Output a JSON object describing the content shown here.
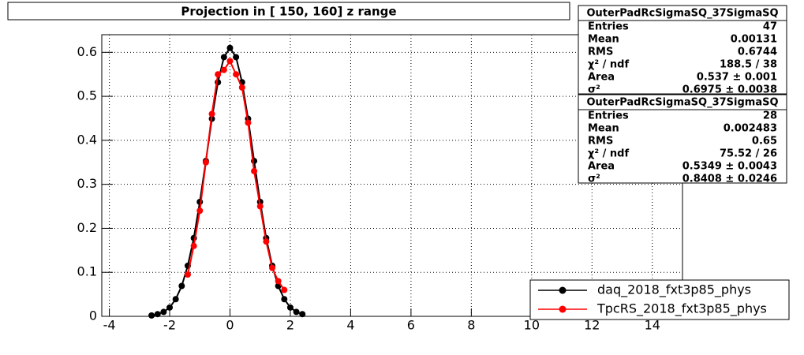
{
  "chart_data": {
    "type": "scatter",
    "title": "Projection in [ 150, 160] z range",
    "xlim": [
      -4.25,
      15
    ],
    "ylim": [
      0,
      0.64
    ],
    "xticks": [
      -4,
      -2,
      0,
      2,
      4,
      6,
      8,
      10,
      12,
      14
    ],
    "yticks": [
      0,
      0.1,
      0.2,
      0.3,
      0.4,
      0.5,
      0.6
    ],
    "grid": true,
    "legend": "bottom-right",
    "series": [
      {
        "name": "daq_2018_fxt3p85_phys",
        "color": "#000000",
        "x": [
          -2.6,
          -2.4,
          -2.2,
          -2.0,
          -1.8,
          -1.6,
          -1.4,
          -1.2,
          -1.0,
          -0.8,
          -0.6,
          -0.4,
          -0.2,
          0,
          0.2,
          0.4,
          0.6,
          0.8,
          1.0,
          1.2,
          1.4,
          1.6,
          1.8,
          2.0,
          2.2,
          2.4
        ],
        "values": [
          0.002,
          0.005,
          0.01,
          0.02,
          0.039,
          0.069,
          0.115,
          0.178,
          0.26,
          0.353,
          0.449,
          0.532,
          0.589,
          0.61,
          0.589,
          0.532,
          0.449,
          0.353,
          0.26,
          0.178,
          0.115,
          0.069,
          0.039,
          0.02,
          0.01,
          0.005
        ]
      },
      {
        "name": "TpcRS_2018_fxt3p85_phys",
        "color": "#ff0000",
        "x": [
          -1.4,
          -1.2,
          -1.0,
          -0.8,
          -0.6,
          -0.4,
          -0.2,
          0,
          0.2,
          0.4,
          0.6,
          0.8,
          1.0,
          1.2,
          1.4,
          1.6,
          1.8
        ],
        "values": [
          0.095,
          0.16,
          0.24,
          0.35,
          0.46,
          0.55,
          0.56,
          0.58,
          0.55,
          0.52,
          0.44,
          0.33,
          0.25,
          0.17,
          0.11,
          0.08,
          0.06
        ]
      }
    ],
    "stats": [
      {
        "title": "OuterPadRcSigmaSQ_37SigmaSQ",
        "rows": [
          [
            "Entries",
            "47"
          ],
          [
            "Mean",
            "0.00131"
          ],
          [
            "RMS",
            "0.6744"
          ],
          [
            "χ² / ndf",
            "188.5 / 38"
          ],
          [
            "Area",
            "0.537 ± 0.001"
          ],
          [
            "σ²",
            "0.6975 ± 0.0038"
          ]
        ]
      },
      {
        "title": "OuterPadRcSigmaSQ_37SigmaSQ",
        "rows": [
          [
            "Entries",
            "28"
          ],
          [
            "Mean",
            "0.002483"
          ],
          [
            "RMS",
            "0.65"
          ],
          [
            "χ² / ndf",
            "75.52 / 26"
          ],
          [
            "Area",
            "0.5349 ± 0.0043"
          ],
          [
            "σ²",
            "0.8408 ± 0.0246"
          ]
        ]
      }
    ]
  }
}
